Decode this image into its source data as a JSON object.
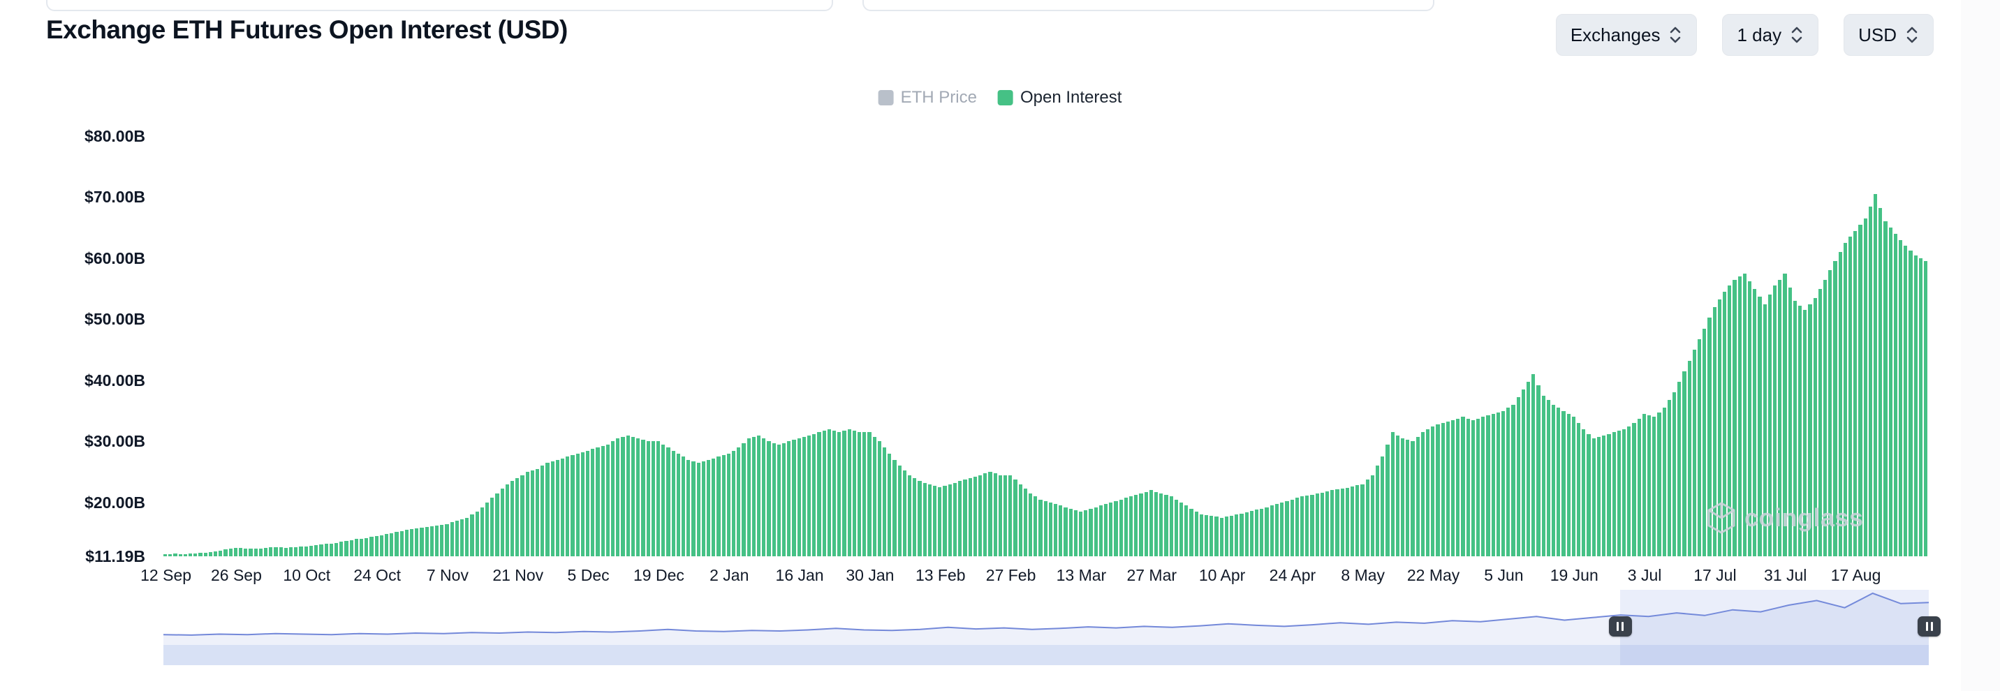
{
  "header": {
    "title": "Exchange ETH Futures Open Interest (USD)",
    "controls": [
      {
        "label": "Exchanges"
      },
      {
        "label": "1 day"
      },
      {
        "label": "USD"
      }
    ]
  },
  "legend": [
    {
      "label": "ETH Price",
      "color": "#b9c0ca",
      "text_color": "#a2a9b4",
      "active": false
    },
    {
      "label": "Open Interest",
      "color": "#45c185",
      "text_color": "#1b2430",
      "active": true
    }
  ],
  "watermark": {
    "text": "coinglass"
  },
  "chart_data": {
    "type": "bar",
    "title": "Exchange ETH Futures Open Interest (USD)",
    "series_name": "Open Interest",
    "disabled_series": [
      "ETH Price"
    ],
    "unit": "USD billions",
    "xlabel": "",
    "ylabel": "",
    "ylim": [
      11.19,
      80
    ],
    "ytick_values": [
      80,
      70,
      60,
      50,
      40,
      30,
      20,
      11.19
    ],
    "ytick_labels": [
      "$80.00B",
      "$70.00B",
      "$60.00B",
      "$50.00B",
      "$40.00B",
      "$30.00B",
      "$20.00B",
      "$11.19B"
    ],
    "x_tick_labels": [
      "12 Sep",
      "26 Sep",
      "10 Oct",
      "24 Oct",
      "7 Nov",
      "21 Nov",
      "5 Dec",
      "19 Dec",
      "2 Jan",
      "16 Jan",
      "30 Jan",
      "13 Feb",
      "27 Feb",
      "13 Mar",
      "27 Mar",
      "10 Apr",
      "24 Apr",
      "8 May",
      "22 May",
      "5 Jun",
      "19 Jun",
      "3 Jul",
      "17 Jul",
      "31 Jul",
      "17 Aug"
    ],
    "interval_days": 2,
    "grid": false,
    "legend_position": "top-center",
    "bar_color": "#45c185",
    "values": [
      11.5,
      11.6,
      11.5,
      11.7,
      11.8,
      12.0,
      12.3,
      12.6,
      12.5,
      12.4,
      12.6,
      12.7,
      12.6,
      12.7,
      12.8,
      13.0,
      13.2,
      13.4,
      13.7,
      14.0,
      14.2,
      14.5,
      14.8,
      15.2,
      15.5,
      15.8,
      16.0,
      16.2,
      16.5,
      17.0,
      17.5,
      18.5,
      20.0,
      21.5,
      23.0,
      24.0,
      25.0,
      25.5,
      26.5,
      27.0,
      27.5,
      28.0,
      28.5,
      29.0,
      29.5,
      30.5,
      31.0,
      30.5,
      30.0,
      30.0,
      29.0,
      28.0,
      27.0,
      26.5,
      27.0,
      27.5,
      28.0,
      29.0,
      30.5,
      31.0,
      30.0,
      29.5,
      30.0,
      30.5,
      31.0,
      31.5,
      32.0,
      31.5,
      32.0,
      31.5,
      31.5,
      30.0,
      28.0,
      26.0,
      24.5,
      23.5,
      23.0,
      22.5,
      23.0,
      23.5,
      24.0,
      24.5,
      25.0,
      24.5,
      24.5,
      23.0,
      21.5,
      20.5,
      20.0,
      19.5,
      19.0,
      18.5,
      19.0,
      19.5,
      20.0,
      20.5,
      21.0,
      21.5,
      22.0,
      21.5,
      21.0,
      20.0,
      19.0,
      18.0,
      17.8,
      17.5,
      17.8,
      18.2,
      18.6,
      19.0,
      19.5,
      20.0,
      20.5,
      21.0,
      21.3,
      21.6,
      22.0,
      22.3,
      22.6,
      23.0,
      24.5,
      27.5,
      31.5,
      30.5,
      30.0,
      31.5,
      32.5,
      33.0,
      33.5,
      34.0,
      33.5,
      34.0,
      34.5,
      35.0,
      36.0,
      38.5,
      41.0,
      37.5,
      36.0,
      35.0,
      34.0,
      32.0,
      30.5,
      31.0,
      31.5,
      32.0,
      33.0,
      34.5,
      34.0,
      35.5,
      38.0,
      41.5,
      45.0,
      48.5,
      52.0,
      54.5,
      56.5,
      57.5,
      55.0,
      52.5,
      55.5,
      57.5,
      53.0,
      51.5,
      53.5,
      56.5,
      59.5,
      62.5,
      64.5,
      66.5,
      70.5,
      66.0,
      64.0,
      62.0,
      60.5,
      59.5
    ]
  },
  "navigator": {
    "selection": [
      0.825,
      1.0
    ],
    "line_color": "#7388d9",
    "fill_color": "rgba(115,136,217,0.12)",
    "band_color": "#d8e1f5",
    "handle_color": "#3a414b",
    "values": [
      0.2,
      0.19,
      0.21,
      0.2,
      0.22,
      0.21,
      0.2,
      0.22,
      0.21,
      0.23,
      0.22,
      0.24,
      0.23,
      0.25,
      0.24,
      0.26,
      0.25,
      0.27,
      0.3,
      0.27,
      0.26,
      0.28,
      0.27,
      0.29,
      0.32,
      0.29,
      0.28,
      0.3,
      0.34,
      0.31,
      0.33,
      0.3,
      0.32,
      0.35,
      0.33,
      0.36,
      0.34,
      0.37,
      0.41,
      0.38,
      0.36,
      0.39,
      0.43,
      0.4,
      0.44,
      0.42,
      0.47,
      0.45,
      0.5,
      0.55,
      0.48,
      0.53,
      0.58,
      0.55,
      0.62,
      0.57,
      0.68,
      0.64,
      0.77,
      0.86,
      0.72,
      1.0,
      0.8,
      0.82
    ]
  }
}
